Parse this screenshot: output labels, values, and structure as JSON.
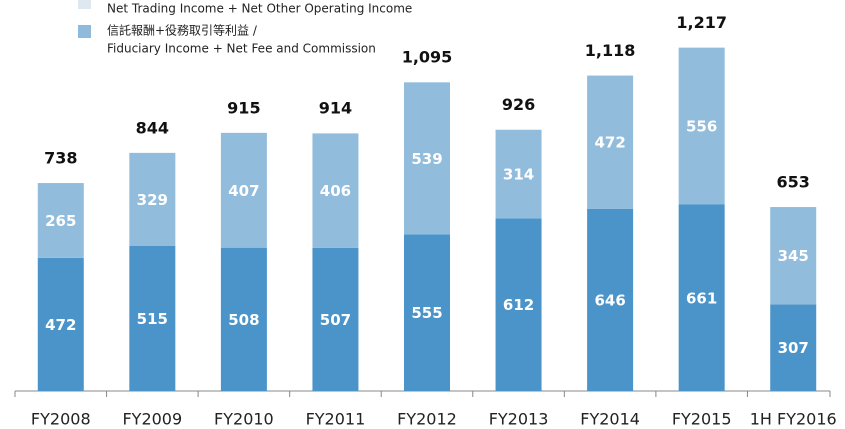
{
  "chart_data": {
    "type": "stacked_bar",
    "legend": [
      {
        "label": [
          "Net Trading Income + Net Other Operating Income"
        ],
        "color": "#dfe7ef"
      },
      {
        "label": [
          "信託報酬+役務取引等利益 /",
          "Fiduciary Income + Net Fee and Commission"
        ],
        "color": "#8fbadb"
      }
    ],
    "categories": [
      "FY2008",
      "FY2009",
      "FY2010",
      "FY2011",
      "FY2012",
      "FY2013",
      "FY2014",
      "FY2015",
      "1H FY2016"
    ],
    "series": [
      {
        "color": "#4a94c9",
        "values": [
          472,
          515,
          508,
          507,
          555,
          612,
          646,
          661,
          307
        ]
      },
      {
        "color": "#92bcdc",
        "values": [
          265,
          329,
          407,
          406,
          539,
          314,
          472,
          556,
          345
        ]
      }
    ],
    "totals": {
      "values": [
        738,
        844,
        915,
        914,
        1095,
        926,
        1118,
        1217,
        653
      ],
      "value_labels": [
        "738",
        "844",
        "915",
        "914",
        "1,095",
        "926",
        "1,118",
        "1,217",
        "653"
      ]
    },
    "ylim": [
      0,
      1400
    ]
  }
}
